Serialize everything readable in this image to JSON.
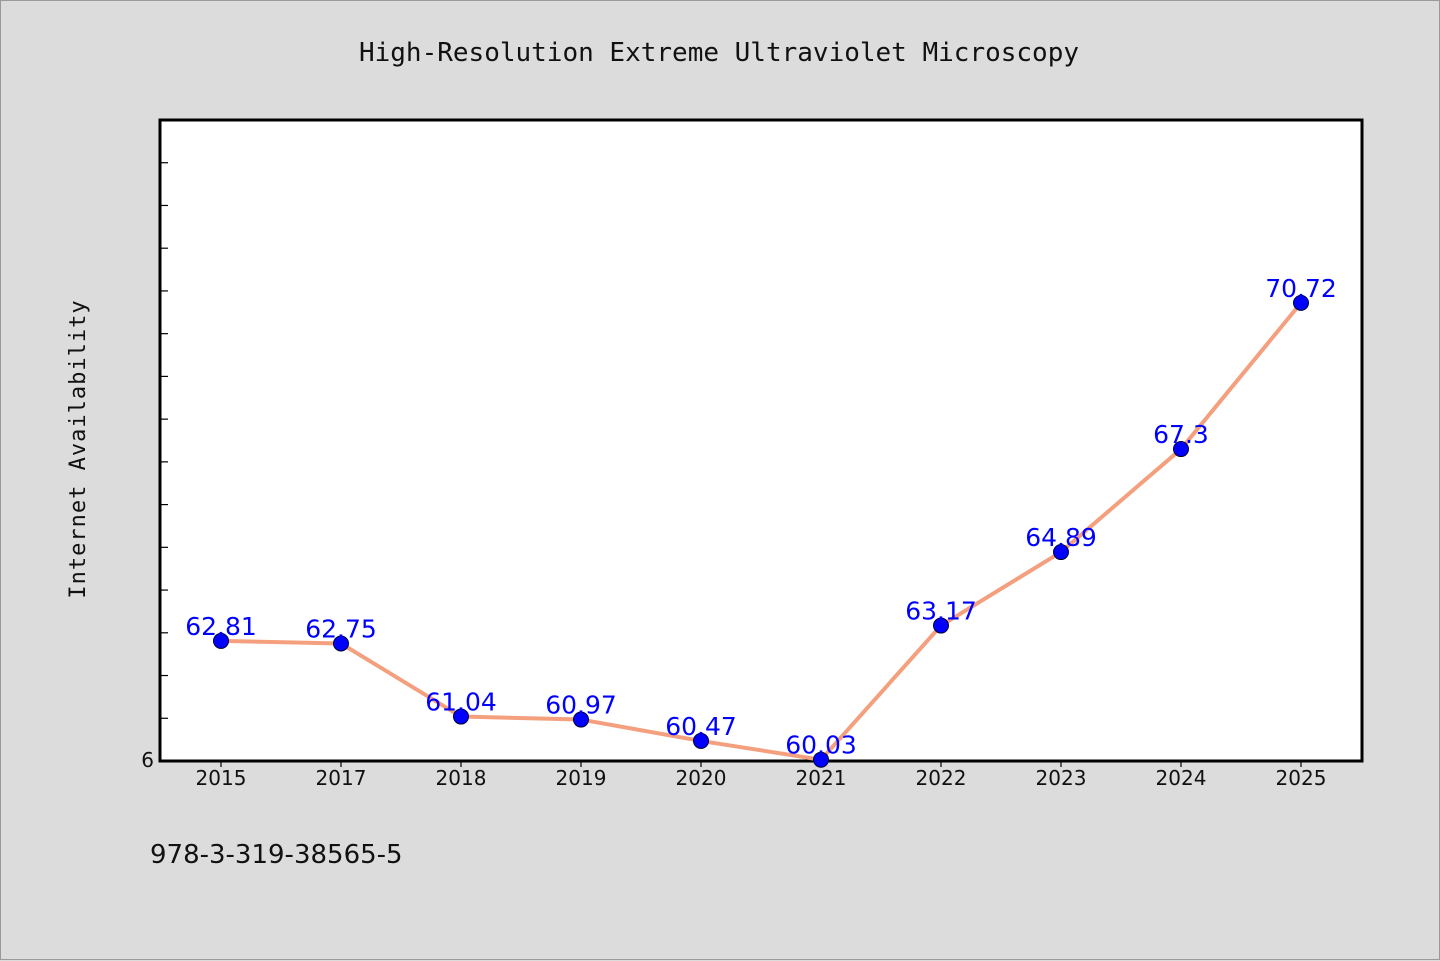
{
  "colors": {
    "background": "#dcdcdc",
    "plot_background": "#ffffff",
    "line": "#f4a07e",
    "marker": "#0000ff",
    "data_label": "#0000ff",
    "axis": "#000000"
  },
  "footer": {
    "isbn": "978-3-319-38565-5"
  },
  "chart_data": {
    "type": "line",
    "title": "High-Resolution Extreme Ultraviolet Microscopy",
    "xlabel": "",
    "ylabel": "Internet Availability",
    "categories": [
      "2015",
      "2017",
      "2018",
      "2019",
      "2020",
      "2021",
      "2022",
      "2023",
      "2024",
      "2025"
    ],
    "series": [
      {
        "values": [
          62.81,
          62.75,
          61.04,
          60.97,
          60.47,
          60.03,
          63.17,
          64.89,
          67.3,
          70.72
        ],
        "labels": [
          "62.81",
          "62.75",
          "61.04",
          "60.97",
          "60.47",
          "60.03",
          "63.17",
          "64.89",
          "67.3",
          "70.72"
        ]
      }
    ],
    "ylim": [
      60,
      75
    ],
    "y_tick_label": "6",
    "grid": false,
    "legend": "none"
  }
}
